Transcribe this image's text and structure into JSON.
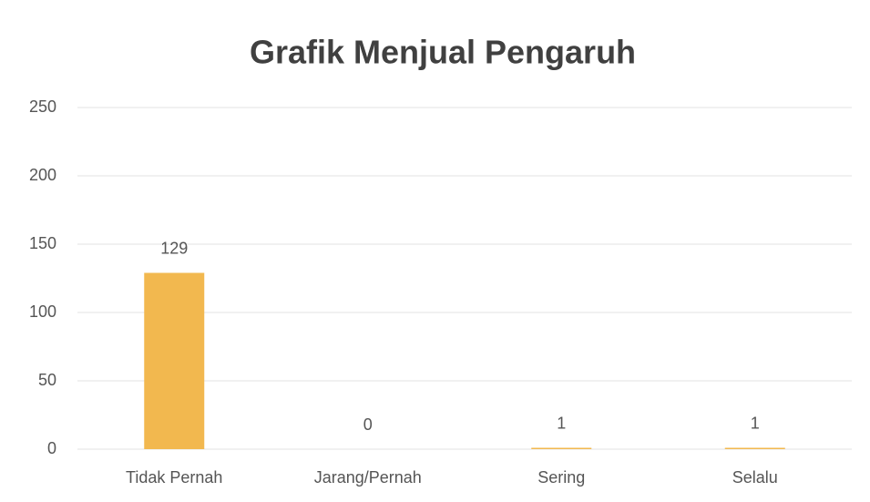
{
  "chart_data": {
    "type": "bar",
    "title": "Grafik Menjual Pengaruh",
    "categories": [
      "Tidak Pernah",
      "Jarang/Pernah",
      "Sering",
      "Selalu"
    ],
    "values": [
      129,
      0,
      1,
      1
    ],
    "color": "#f2b84f",
    "ylim": [
      0,
      250
    ],
    "yticks": [
      0,
      50,
      100,
      150,
      200,
      250
    ],
    "grid": true
  }
}
